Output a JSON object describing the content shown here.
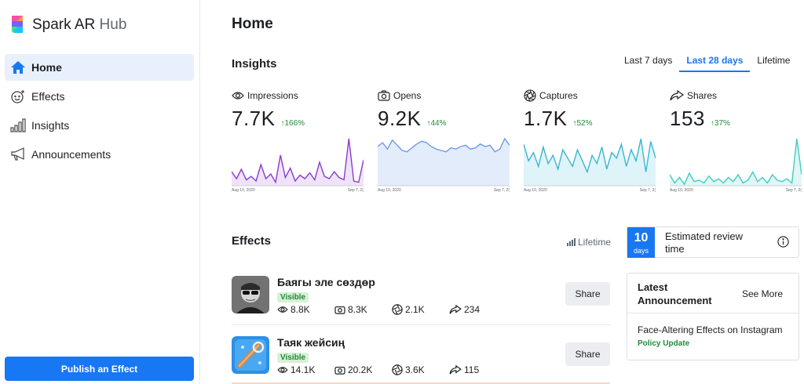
{
  "app": {
    "brand": "Spark AR",
    "brand_suffix": "Hub"
  },
  "sidebar": {
    "items": [
      {
        "label": "Home",
        "icon": "home-icon",
        "active": true
      },
      {
        "label": "Effects",
        "icon": "smiley-sparkle-icon",
        "active": false
      },
      {
        "label": "Insights",
        "icon": "bar-chart-icon",
        "active": false
      },
      {
        "label": "Announcements",
        "icon": "megaphone-icon",
        "active": false
      }
    ],
    "publish_label": "Publish an Effect"
  },
  "main": {
    "title": "Home",
    "insights": {
      "title": "Insights",
      "ranges": [
        "Last 7 days",
        "Last 28 days",
        "Lifetime"
      ],
      "active_range": "Last 28 days",
      "metrics": [
        {
          "label": "Impressions",
          "icon": "eye-icon",
          "value": "7.7K",
          "delta": "166%",
          "color": "#8a3ccf",
          "fill": "#efe3f8",
          "axis_start": "Aug 10, 2020",
          "axis_end": "Sep 7, 2(",
          "series": [
            12,
            6,
            14,
            5,
            8,
            4,
            18,
            6,
            10,
            3,
            26,
            7,
            15,
            4,
            9,
            6,
            11,
            5,
            20,
            8,
            6,
            12,
            7,
            5,
            40,
            4,
            3,
            22
          ]
        },
        {
          "label": "Opens",
          "icon": "camera-icon",
          "value": "9.2K",
          "delta": "44%",
          "color": "#6f9be8",
          "fill": "#e3ecfb",
          "axis_start": "Aug 10, 2020",
          "axis_end": "Sep 7, 2(",
          "series": [
            30,
            33,
            28,
            35,
            31,
            27,
            26,
            29,
            32,
            34,
            33,
            30,
            28,
            27,
            26,
            29,
            28,
            30,
            31,
            28,
            29,
            32,
            30,
            31,
            26,
            28,
            36,
            31
          ]
        },
        {
          "label": "Captures",
          "icon": "shutter-icon",
          "value": "1.7K",
          "delta": "52%",
          "color": "#37b7cf",
          "fill": "#dff4f8",
          "axis_start": "Aug 10, 2020",
          "axis_end": "Sep 7, 2(",
          "series": [
            30,
            18,
            24,
            14,
            28,
            16,
            22,
            12,
            26,
            20,
            14,
            26,
            18,
            10,
            22,
            16,
            28,
            12,
            24,
            20,
            30,
            14,
            26,
            18,
            34,
            10,
            32,
            20
          ]
        },
        {
          "label": "Shares",
          "icon": "share-arrow-icon",
          "value": "153",
          "delta": "37%",
          "color": "#3ccfc4",
          "fill": "#e0f7f5",
          "axis_start": "Aug 10, 2020",
          "axis_end": "Sep 7, 2(",
          "series": [
            8,
            2,
            6,
            1,
            9,
            3,
            4,
            2,
            7,
            3,
            5,
            2,
            6,
            3,
            8,
            2,
            4,
            10,
            3,
            6,
            2,
            8,
            4,
            3,
            5,
            2,
            34,
            8
          ]
        }
      ]
    },
    "effects": {
      "title": "Effects",
      "lifetime_label": "Lifetime",
      "share_label": "Share",
      "items": [
        {
          "name": "Баягы эле сөздөр",
          "status": "Visible",
          "impressions": "8.8K",
          "opens": "8.3K",
          "captures": "2.1K",
          "shares": "234"
        },
        {
          "name": "Таяк жейсиң",
          "status": "Visible",
          "impressions": "14.1K",
          "opens": "20.2K",
          "captures": "3.6K",
          "shares": "115"
        }
      ]
    },
    "review": {
      "days": "10",
      "days_unit": "days",
      "label": "Estimated review time"
    },
    "announcement": {
      "title": "Latest Announcement",
      "see_more": "See More",
      "item": "Face-Altering Effects on Instagram",
      "tag": "Policy Update"
    }
  }
}
